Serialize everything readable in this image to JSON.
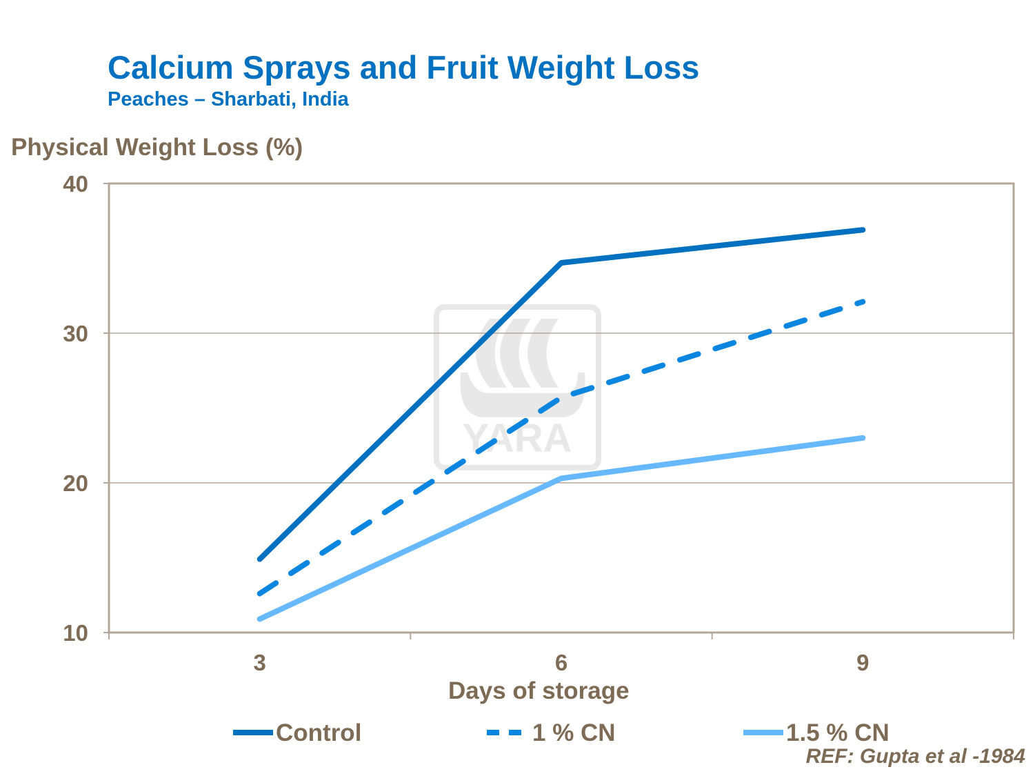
{
  "chart_data": {
    "type": "line",
    "title": "Calcium Sprays and Fruit Weight Loss",
    "subtitle": "Peaches  – Sharbati, India",
    "xlabel": "Days of storage",
    "ylabel": "Physical Weight Loss (%)",
    "categories": [
      "3",
      "6",
      "9"
    ],
    "ylim": [
      10,
      40
    ],
    "yticks": [
      10,
      20,
      30,
      40
    ],
    "grid": true,
    "legend_position": "bottom",
    "series": [
      {
        "name": "Control",
        "values": [
          14.9,
          34.7,
          36.9
        ],
        "color": "#0070c0",
        "style": "solid"
      },
      {
        "name": "1 % CN",
        "values": [
          12.6,
          25.7,
          32.1
        ],
        "color": "#0a86e0",
        "style": "dashed"
      },
      {
        "name": "1.5 % CN",
        "values": [
          10.9,
          20.3,
          23.0
        ],
        "color": "#66b8ff",
        "style": "solid"
      }
    ],
    "watermark": "YARA",
    "reference": "REF: Gupta et al -1984"
  }
}
